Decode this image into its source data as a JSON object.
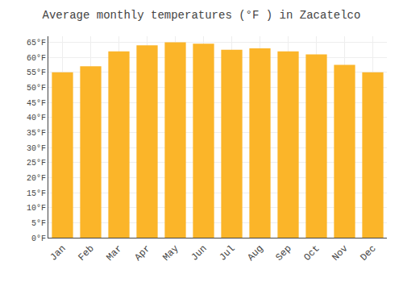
{
  "chart_data": {
    "type": "bar",
    "title": "Average monthly temperatures (°F ) in Zacatelco",
    "categories": [
      "Jan",
      "Feb",
      "Mar",
      "Apr",
      "May",
      "Jun",
      "Jul",
      "Aug",
      "Sep",
      "Oct",
      "Nov",
      "Dec"
    ],
    "values": [
      55,
      57,
      62,
      64,
      65,
      64.5,
      62.5,
      63,
      62,
      61,
      57.5,
      55
    ],
    "color": "#FBB529",
    "ylim": [
      0,
      67
    ],
    "yticks": [
      {
        "value": 0,
        "label": "0°F"
      },
      {
        "value": 5,
        "label": "5°F"
      },
      {
        "value": 10,
        "label": "10°F"
      },
      {
        "value": 15,
        "label": "15°F"
      },
      {
        "value": 20,
        "label": "20°F"
      },
      {
        "value": 25,
        "label": "25°F"
      },
      {
        "value": 30,
        "label": "30°F"
      },
      {
        "value": 35,
        "label": "35°F"
      },
      {
        "value": 40,
        "label": "40°F"
      },
      {
        "value": 45,
        "label": "45°F"
      },
      {
        "value": 50,
        "label": "50°F"
      },
      {
        "value": 55,
        "label": "55°F"
      },
      {
        "value": 60,
        "label": "60°F"
      },
      {
        "value": 65,
        "label": "65°F"
      }
    ],
    "grid": true
  }
}
